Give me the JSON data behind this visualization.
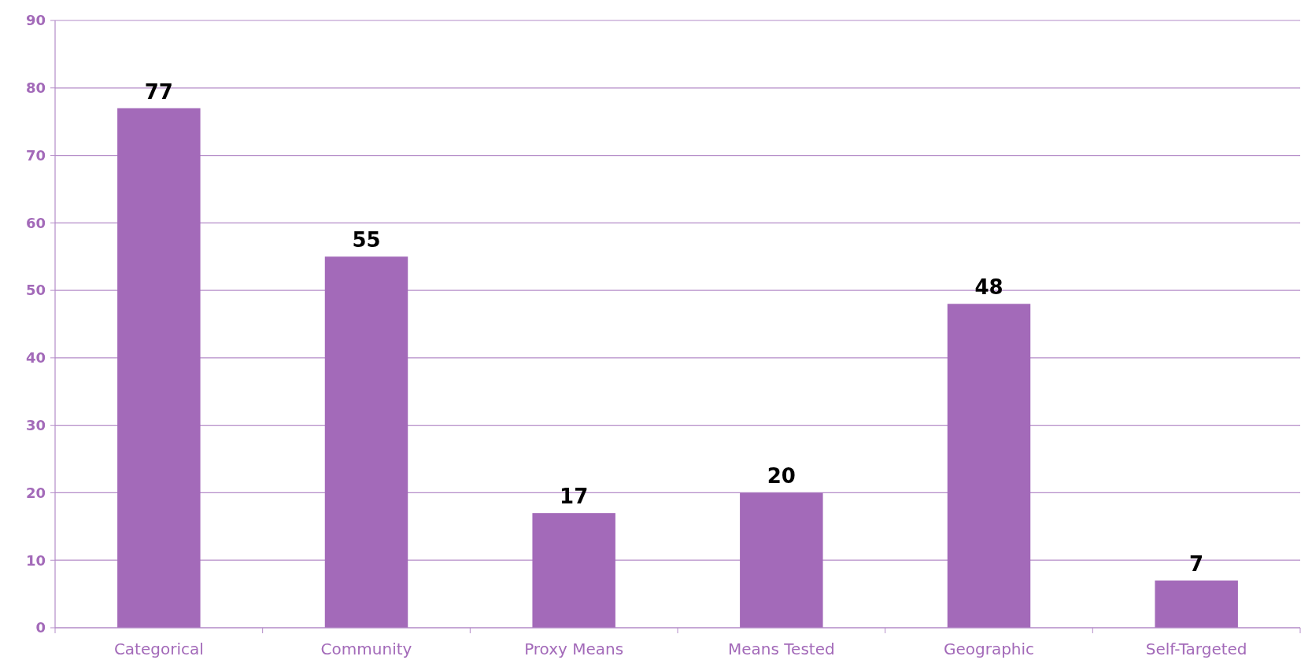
{
  "chart_data": {
    "type": "bar",
    "categories": [
      "Categorical",
      "Community",
      "Proxy Means",
      "Means Tested",
      "Geographic",
      "Self-Targeted"
    ],
    "values": [
      77,
      55,
      17,
      20,
      48,
      7
    ],
    "color": "#a36ab9",
    "ylim": [
      0,
      90
    ],
    "yticks": [
      0,
      10,
      20,
      30,
      40,
      50,
      60,
      70,
      80,
      90
    ],
    "grid": "y",
    "data_labels": true
  }
}
